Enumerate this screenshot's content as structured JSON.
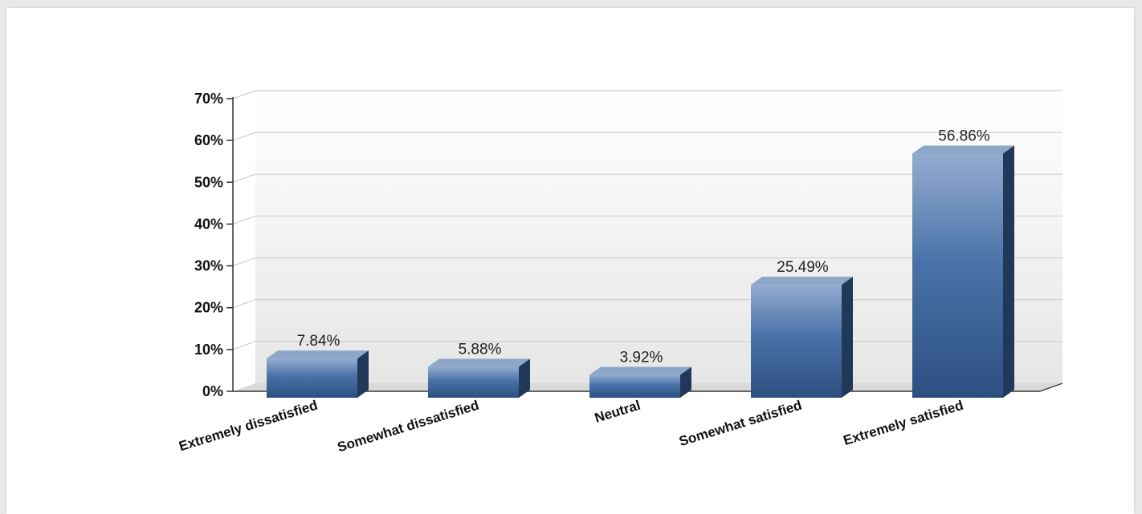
{
  "chart_data": {
    "type": "bar",
    "categories": [
      "Extremely dissatisfied",
      "Somewhat dissatisfied",
      "Neutral",
      "Somewhat satisfied",
      "Extremely satisfied"
    ],
    "values": [
      7.84,
      5.88,
      3.92,
      25.49,
      56.86
    ],
    "value_labels": [
      "7.84%",
      "5.88%",
      "3.92%",
      "25.49%",
      "56.86%"
    ],
    "y_ticks": [
      "0%",
      "10%",
      "20%",
      "30%",
      "40%",
      "50%",
      "60%",
      "70%"
    ],
    "ylim": [
      0,
      70
    ],
    "title": "",
    "xlabel": "",
    "ylabel": "",
    "grid": true,
    "bar_colors": {
      "front_top": "#93acd0",
      "front_mid": "#4a72a8",
      "front_bottom": "#2d4f80",
      "top_face": "#8ea7c9",
      "side_face": "#22385a"
    }
  }
}
